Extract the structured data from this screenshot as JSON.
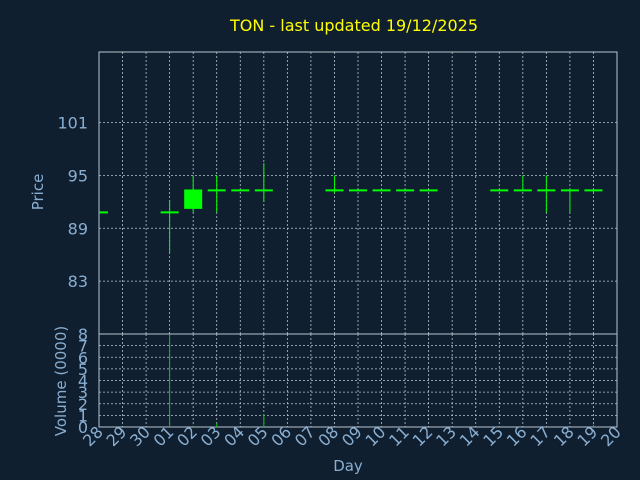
{
  "colors": {
    "background": "#0f1f30",
    "title": "#ffff00",
    "axis_text": "#8aaed0",
    "grid": "#b8c4d0",
    "frame": "#b8c4d0",
    "candle": "#00ff00",
    "volume": "#00cc00"
  },
  "chart_data": [
    {
      "type": "candlestick",
      "title": "TON - last updated 19/12/2025",
      "ylabel": "Price",
      "xlabel": "",
      "ylim": [
        77,
        109
      ],
      "yticks": [
        83,
        89,
        95,
        101
      ],
      "grid": true,
      "candles": [
        {
          "day": "28",
          "open": 90.8,
          "high": 90.8,
          "low": 90.8,
          "close": 90.8
        },
        {
          "day": "01",
          "open": 90.8,
          "high": 92.2,
          "low": 86.2,
          "close": 90.8
        },
        {
          "day": "02",
          "open": 91.2,
          "high": 95.0,
          "low": 90.8,
          "close": 93.4
        },
        {
          "day": "03",
          "open": 93.3,
          "high": 95.0,
          "low": 90.8,
          "close": 93.3
        },
        {
          "day": "04",
          "open": 93.3,
          "high": 93.3,
          "low": 93.3,
          "close": 93.3
        },
        {
          "day": "05",
          "open": 93.3,
          "high": 96.4,
          "low": 92.0,
          "close": 93.3
        },
        {
          "day": "08",
          "open": 93.3,
          "high": 95.0,
          "low": 93.0,
          "close": 93.3
        },
        {
          "day": "09",
          "open": 93.3,
          "high": 93.3,
          "low": 93.3,
          "close": 93.3
        },
        {
          "day": "10",
          "open": 93.3,
          "high": 93.3,
          "low": 93.3,
          "close": 93.3
        },
        {
          "day": "11",
          "open": 93.3,
          "high": 93.3,
          "low": 93.3,
          "close": 93.3
        },
        {
          "day": "12",
          "open": 93.3,
          "high": 93.3,
          "low": 93.3,
          "close": 93.3
        },
        {
          "day": "15",
          "open": 93.3,
          "high": 93.3,
          "low": 93.3,
          "close": 93.3
        },
        {
          "day": "16",
          "open": 93.3,
          "high": 95.0,
          "low": 93.3,
          "close": 93.3
        },
        {
          "day": "17",
          "open": 93.3,
          "high": 95.0,
          "low": 90.8,
          "close": 93.3
        },
        {
          "day": "18",
          "open": 93.3,
          "high": 93.5,
          "low": 90.8,
          "close": 93.3
        },
        {
          "day": "19",
          "open": 93.3,
          "high": 93.3,
          "low": 93.0,
          "close": 93.3
        }
      ]
    },
    {
      "type": "bar",
      "title": "",
      "ylabel": "Volume (0000)",
      "xlabel": "Day",
      "ylim": [
        0,
        8
      ],
      "yticks": [
        0,
        1,
        2,
        3,
        4,
        5,
        6,
        7,
        8
      ],
      "grid": true,
      "categories": [
        "28",
        "29",
        "30",
        "01",
        "02",
        "03",
        "04",
        "05",
        "06",
        "07",
        "08",
        "09",
        "10",
        "11",
        "12",
        "13",
        "14",
        "15",
        "16",
        "17",
        "18",
        "19",
        "20"
      ],
      "values": [
        0,
        0,
        0,
        8,
        0.1,
        0.3,
        0,
        1.1,
        0,
        0,
        0,
        0,
        0,
        0,
        0,
        0,
        0,
        0,
        0,
        0,
        0,
        0.2,
        0
      ]
    }
  ]
}
